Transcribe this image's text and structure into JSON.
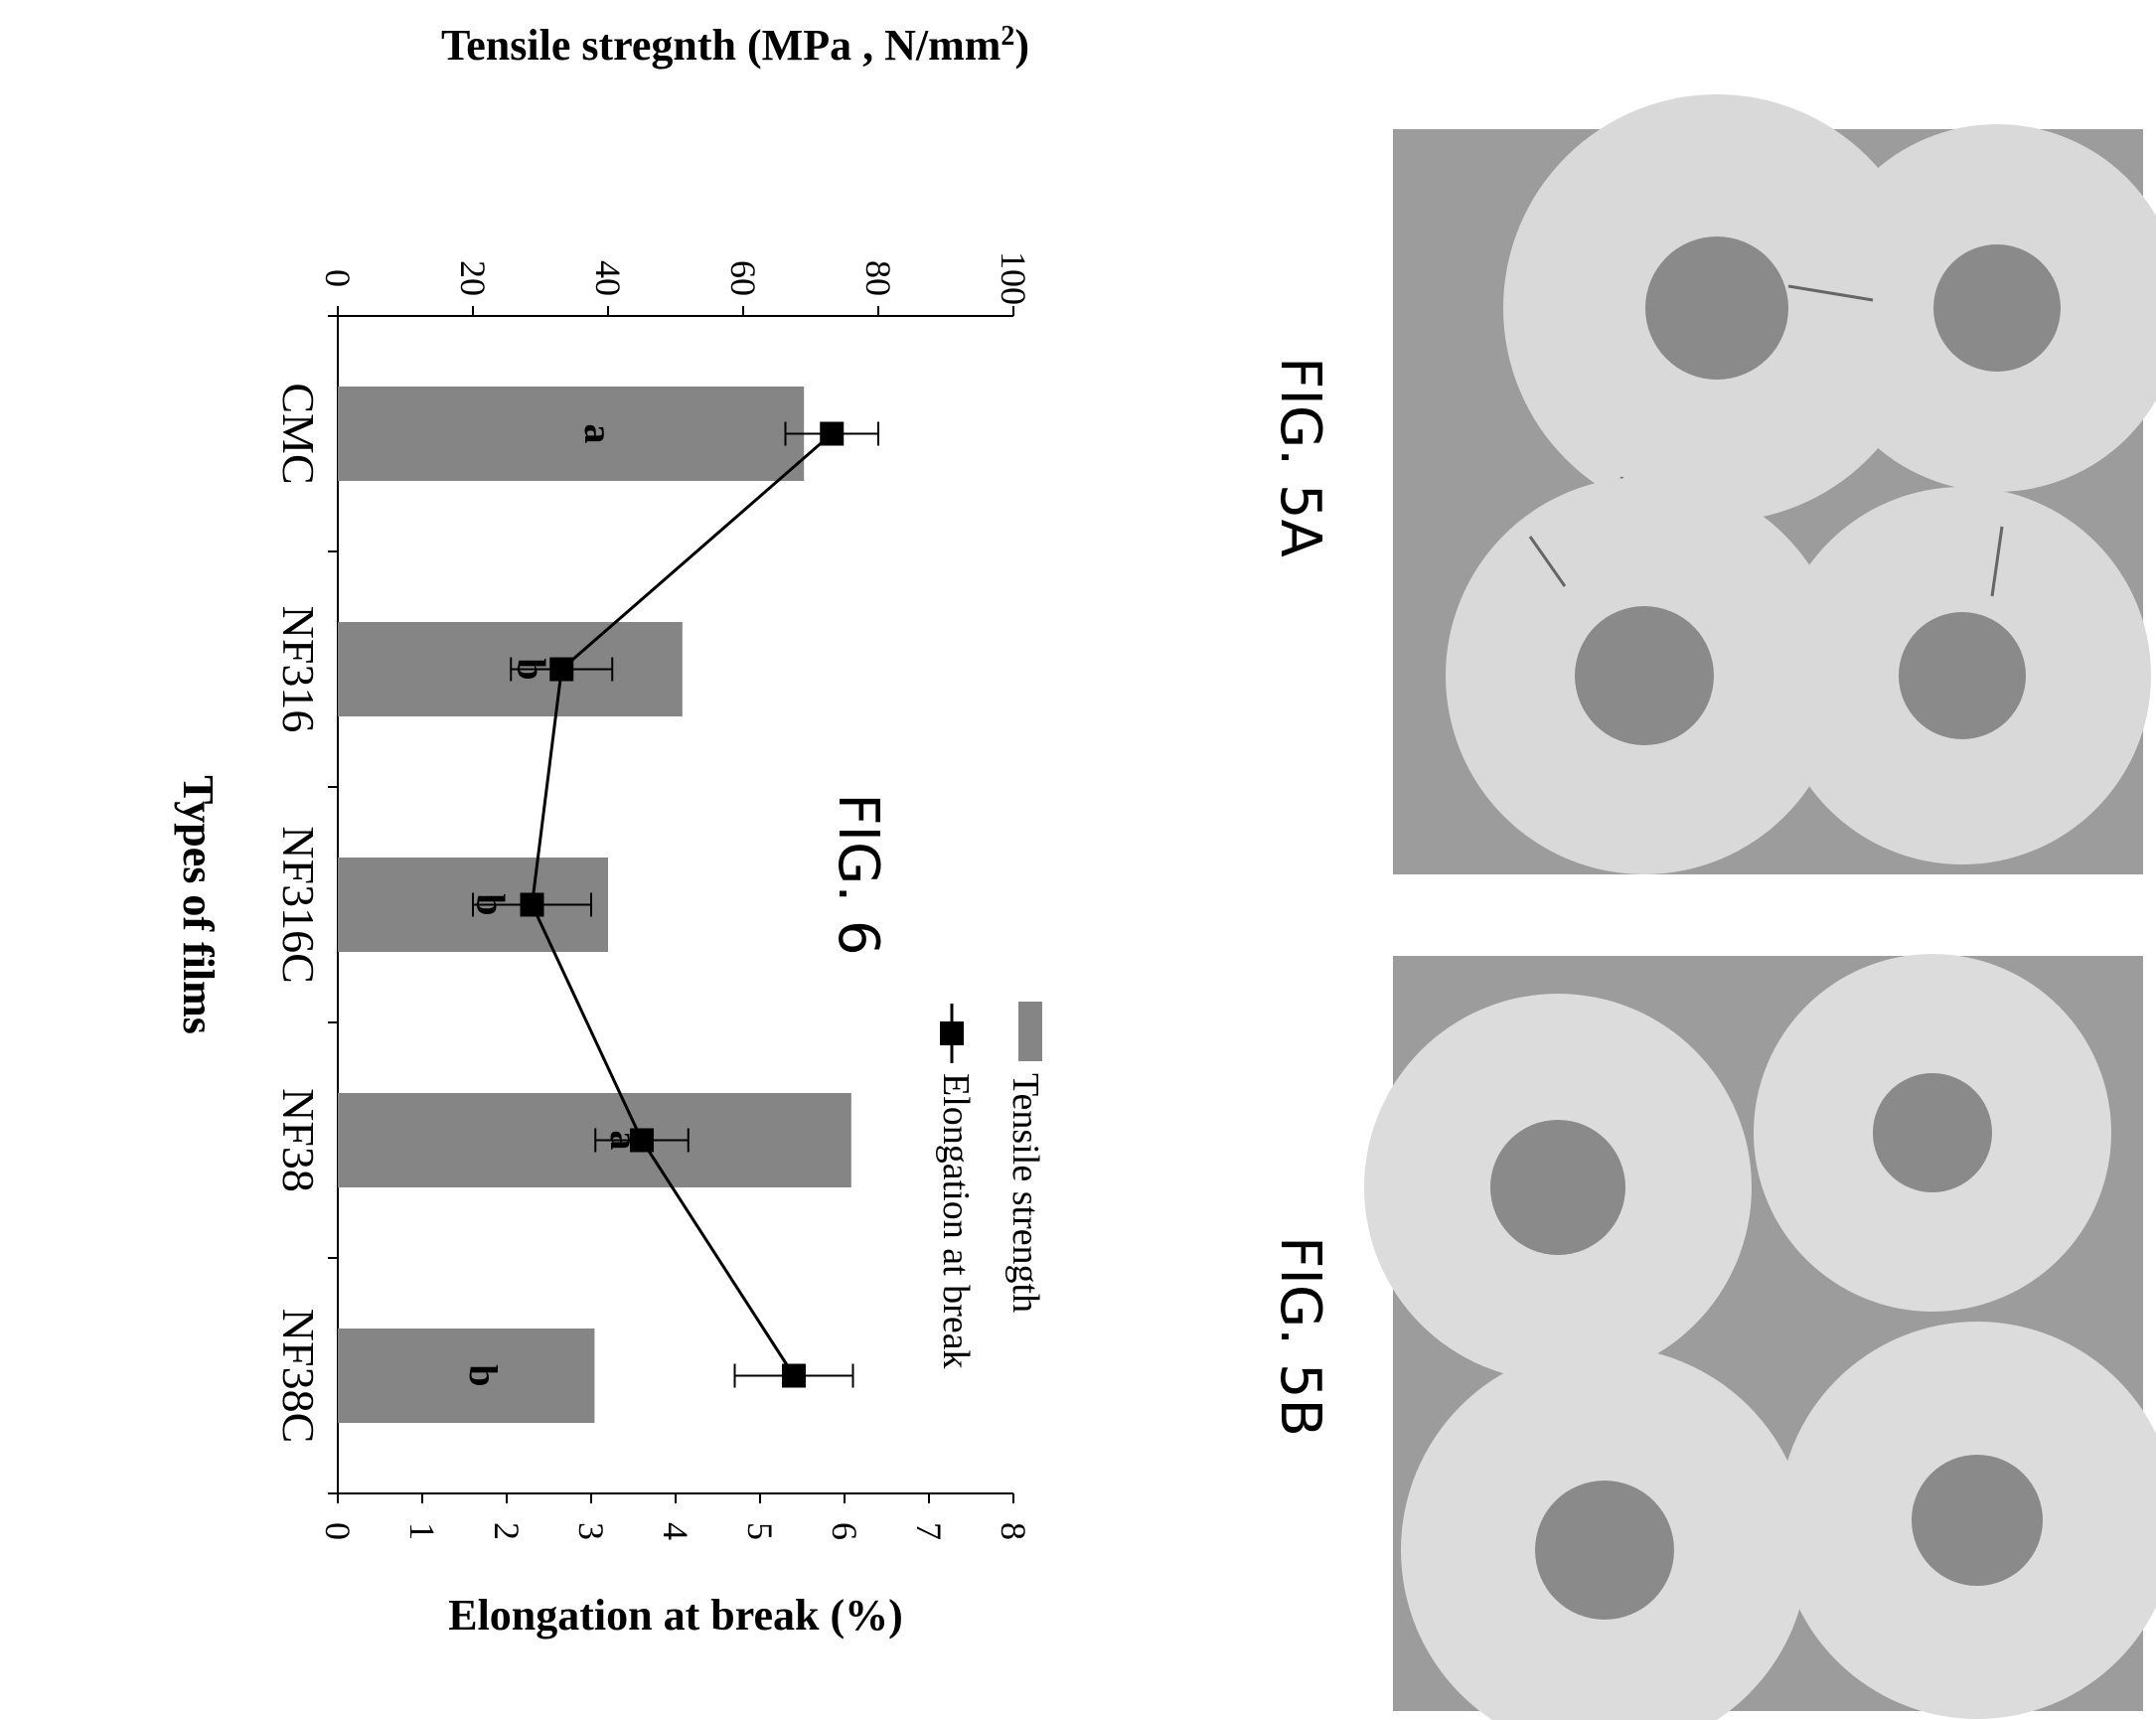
{
  "figures": {
    "fig5a_label": "FIG. 5A",
    "fig5b_label": "FIG. 5B",
    "fig6_label": "FIG. 6"
  },
  "colors": {
    "bar": "#858585",
    "line": "#000000",
    "photo_background": "#9c9c9c",
    "disc": "#d9d9d9",
    "disc_hole": "#8a8a8a"
  },
  "chart_data": {
    "type": "bar",
    "orientation": "rotated 90 degrees clockwise",
    "categories": [
      "CMC",
      "NF316",
      "NF316C",
      "NF38",
      "NF38C"
    ],
    "xlabel": "Types of films",
    "ylabel_left": "Tensile stregnth (MPa , N/mm",
    "ylabel_left_sup": "2",
    "ylabel_left_close": ")",
    "ylabel_right": "Elongation at break (%)",
    "ylim_left": [
      0,
      100
    ],
    "ylim_right": [
      0,
      8
    ],
    "yticks_left": [
      "0",
      "20",
      "40",
      "60",
      "80",
      "100"
    ],
    "yticks_right": [
      "0",
      "1",
      "2",
      "3",
      "4",
      "5",
      "6",
      "7",
      "8"
    ],
    "series": [
      {
        "name": "Tensile strength",
        "kind": "bar",
        "axis": "left",
        "values": [
          69,
          51,
          40,
          76,
          38
        ],
        "labels": [
          "a",
          "b",
          "b",
          "a",
          "b"
        ]
      },
      {
        "name": "Elongation at break",
        "kind": "line",
        "axis": "right",
        "marker": "square",
        "values": [
          5.85,
          2.65,
          2.3,
          3.6,
          5.4
        ],
        "error": [
          0.55,
          0.6,
          0.7,
          0.55,
          0.7
        ]
      }
    ],
    "legend": "top-right"
  }
}
